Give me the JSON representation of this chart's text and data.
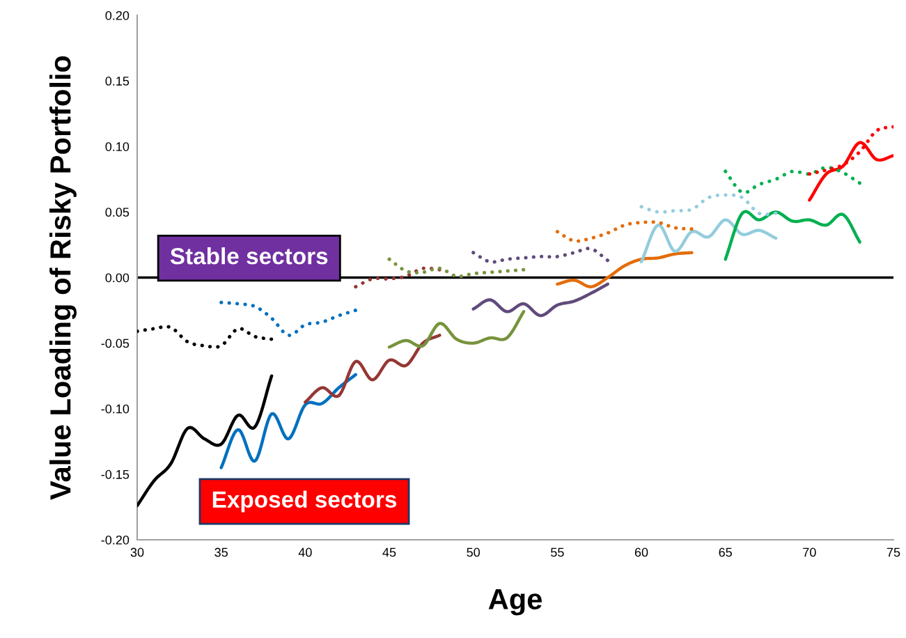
{
  "chart_data": {
    "type": "line",
    "xlabel": "Age",
    "ylabel": "Value Loading of Risky Portfolio",
    "xlim": [
      30,
      75
    ],
    "xticks": [
      30,
      35,
      40,
      45,
      50,
      55,
      60,
      65,
      70,
      75
    ],
    "ylim": [
      -0.2,
      0.2
    ],
    "yticks": [
      {
        "value": -0.2,
        "label": "-0.20"
      },
      {
        "value": -0.15,
        "label": "-0.15"
      },
      {
        "value": -0.1,
        "label": "-0.10"
      },
      {
        "value": -0.05,
        "label": "-0.05"
      },
      {
        "value": 0,
        "label": "0.00"
      },
      {
        "value": 0.05,
        "label": "0.05"
      },
      {
        "value": 0.1,
        "label": "0.10"
      },
      {
        "value": 0.15,
        "label": "0.15"
      },
      {
        "value": 0.2,
        "label": "0.20"
      }
    ],
    "grid": false,
    "legend": false,
    "marker": "none",
    "ref_lines": [
      {
        "axis": "y",
        "value": 0,
        "color": "#000000"
      }
    ],
    "annotations": [
      "Stable sectors",
      "Exposed sectors"
    ],
    "series": [
      {
        "color": "#000000",
        "line_style": "solid",
        "x": [
          30,
          31,
          32,
          33,
          34,
          35,
          36,
          37,
          38
        ],
        "values": [
          -0.174,
          -0.155,
          -0.142,
          -0.115,
          -0.123,
          -0.127,
          -0.105,
          -0.114,
          -0.075
        ]
      },
      {
        "color": "#0070c0",
        "line_style": "solid",
        "x": [
          35,
          36,
          37,
          38,
          39,
          40,
          41,
          42,
          43
        ],
        "values": [
          -0.145,
          -0.116,
          -0.14,
          -0.104,
          -0.123,
          -0.097,
          -0.096,
          -0.084,
          -0.074
        ]
      },
      {
        "color": "#953735",
        "line_style": "solid",
        "x": [
          40,
          41,
          42,
          43,
          44,
          45,
          46,
          47,
          48
        ],
        "values": [
          -0.095,
          -0.084,
          -0.09,
          -0.064,
          -0.078,
          -0.063,
          -0.067,
          -0.05,
          -0.044
        ]
      },
      {
        "color": "#77933c",
        "line_style": "solid",
        "x": [
          45,
          46,
          47,
          48,
          49,
          50,
          51,
          52,
          53
        ],
        "values": [
          -0.053,
          -0.048,
          -0.052,
          -0.035,
          -0.047,
          -0.05,
          -0.046,
          -0.046,
          -0.026
        ]
      },
      {
        "color": "#604a7b",
        "line_style": "solid",
        "x": [
          50,
          51,
          52,
          53,
          54,
          55,
          56,
          57,
          58
        ],
        "values": [
          -0.024,
          -0.017,
          -0.026,
          -0.02,
          -0.029,
          -0.021,
          -0.018,
          -0.012,
          -0.005
        ]
      },
      {
        "color": "#e46c0a",
        "line_style": "solid",
        "x": [
          55,
          56,
          57,
          58,
          59,
          60,
          61,
          62,
          63
        ],
        "values": [
          -0.005,
          -0.002,
          -0.007,
          0.0,
          0.009,
          0.014,
          0.015,
          0.018,
          0.019
        ]
      },
      {
        "color": "#93cddd",
        "line_style": "solid",
        "x": [
          60,
          61,
          62,
          63,
          64,
          65,
          66,
          67,
          68
        ],
        "values": [
          0.012,
          0.04,
          0.02,
          0.035,
          0.031,
          0.044,
          0.033,
          0.036,
          0.03
        ]
      },
      {
        "color": "#00b050",
        "line_style": "solid",
        "x": [
          65,
          66,
          67,
          68,
          69,
          70,
          71,
          72,
          73
        ],
        "values": [
          0.014,
          0.049,
          0.044,
          0.05,
          0.043,
          0.044,
          0.04,
          0.048,
          0.027
        ]
      },
      {
        "color": "#ff0000",
        "line_style": "solid",
        "x": [
          70,
          71,
          72,
          73,
          74,
          75
        ],
        "values": [
          0.059,
          0.079,
          0.085,
          0.103,
          0.09,
          0.093
        ]
      },
      {
        "color": "#000000",
        "line_style": "dotted",
        "x": [
          30,
          31,
          32,
          33,
          34,
          35,
          36,
          37,
          38
        ],
        "values": [
          -0.041,
          -0.039,
          -0.038,
          -0.049,
          -0.052,
          -0.052,
          -0.039,
          -0.045,
          -0.047
        ]
      },
      {
        "color": "#0070c0",
        "line_style": "dotted",
        "x": [
          35,
          36,
          37,
          38,
          39,
          40,
          41,
          42,
          43
        ],
        "values": [
          -0.019,
          -0.02,
          -0.022,
          -0.031,
          -0.044,
          -0.036,
          -0.034,
          -0.029,
          -0.025
        ]
      },
      {
        "color": "#953735",
        "line_style": "dotted",
        "x": [
          43,
          44,
          45,
          46,
          47,
          48
        ],
        "values": [
          -0.007,
          -0.001,
          -0.001,
          0.001,
          0.007,
          0.006
        ]
      },
      {
        "color": "#77933c",
        "line_style": "dotted",
        "x": [
          45,
          46,
          47,
          48,
          49,
          50,
          51,
          52,
          53
        ],
        "values": [
          0.014,
          0.005,
          0.004,
          0.007,
          0.001,
          0.003,
          0.004,
          0.005,
          0.006
        ]
      },
      {
        "color": "#604a7b",
        "line_style": "dotted",
        "x": [
          50,
          51,
          52,
          53,
          54,
          55,
          56,
          57,
          58
        ],
        "values": [
          0.019,
          0.012,
          0.014,
          0.015,
          0.016,
          0.016,
          0.019,
          0.022,
          0.013
        ]
      },
      {
        "color": "#e46c0a",
        "line_style": "dotted",
        "x": [
          55,
          56,
          57,
          58,
          59,
          60,
          61,
          62,
          63
        ],
        "values": [
          0.035,
          0.028,
          0.03,
          0.034,
          0.04,
          0.042,
          0.042,
          0.038,
          0.037
        ]
      },
      {
        "color": "#93cddd",
        "line_style": "dotted",
        "x": [
          60,
          61,
          62,
          63,
          64,
          65,
          66,
          67,
          68
        ],
        "values": [
          0.054,
          0.05,
          0.051,
          0.052,
          0.061,
          0.063,
          0.061,
          0.049,
          0.049
        ]
      },
      {
        "color": "#00b050",
        "line_style": "dotted",
        "x": [
          65,
          66,
          67,
          68,
          69,
          70,
          71,
          72,
          73
        ],
        "values": [
          0.081,
          0.065,
          0.071,
          0.075,
          0.081,
          0.079,
          0.084,
          0.08,
          0.072
        ]
      },
      {
        "color": "#ff0000",
        "line_style": "dotted",
        "x": [
          70,
          71,
          72,
          73,
          74,
          75
        ],
        "values": [
          0.079,
          0.082,
          0.086,
          0.096,
          0.112,
          0.115
        ]
      }
    ]
  }
}
